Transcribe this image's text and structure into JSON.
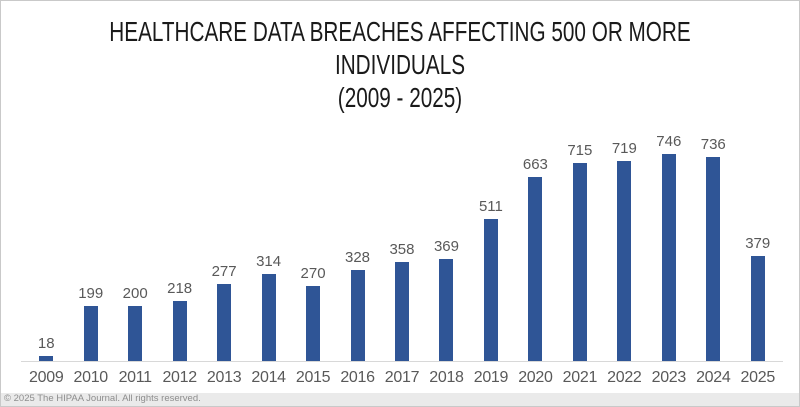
{
  "title": {
    "line1": "HEALTHCARE DATA BREACHES AFFECTING 500 OR MORE",
    "line2": "INDIVIDUALS",
    "line3": "(2009 - 2025)"
  },
  "footer": {
    "copyright": "© 2025 The HIPAA Journal. All rights reserved."
  },
  "chart_data": {
    "type": "bar",
    "title": "HEALTHCARE DATA BREACHES AFFECTING 500 OR MORE INDIVIDUALS (2009 - 2025)",
    "categories": [
      "2009",
      "2010",
      "2011",
      "2012",
      "2013",
      "2014",
      "2015",
      "2016",
      "2017",
      "2018",
      "2019",
      "2020",
      "2021",
      "2022",
      "2023",
      "2024",
      "2025"
    ],
    "values": [
      18,
      199,
      200,
      218,
      277,
      314,
      270,
      328,
      358,
      369,
      511,
      663,
      715,
      719,
      746,
      736,
      379
    ],
    "xlabel": "",
    "ylabel": "",
    "ylim": [
      0,
      800
    ],
    "grid": false,
    "legend": false,
    "data_labels": true,
    "bar_color": "#2F5596",
    "label_color": "#595959",
    "axis_line_color": "#D8D8D8",
    "title_color": "#1A1A1A",
    "background_color": "#FFFFFF"
  }
}
